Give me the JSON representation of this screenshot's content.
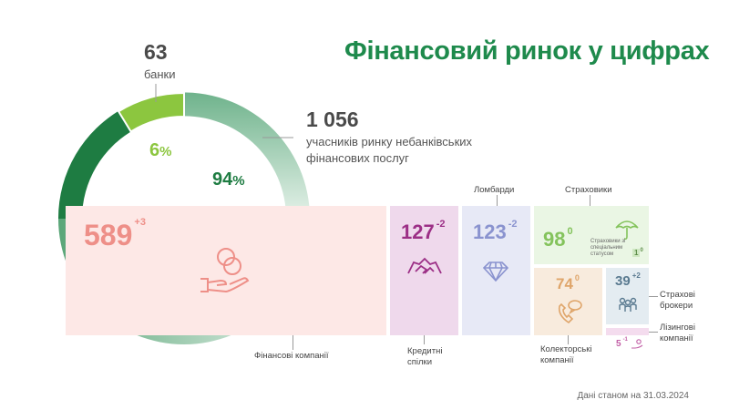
{
  "title": "Фінансовий ринок у цифрах",
  "footer": "Дані станом на 31.03.2024",
  "banks": {
    "count": "63",
    "label": "банки",
    "percent": "6",
    "pct_sign": "%"
  },
  "nonbank": {
    "count": "1 056",
    "label": "учасників ринку небанківських фінансових послуг",
    "percent": "94",
    "pct_sign": "%"
  },
  "tiles": {
    "finance": {
      "value": "589",
      "change": "+3",
      "label": "Фінансові компанії",
      "icon": "coins-hand-icon"
    },
    "credit": {
      "value": "127",
      "change": "-2",
      "label": "Кредитні спілки",
      "icon": "handshake-icon"
    },
    "pawnshops": {
      "value": "123",
      "change": "-2",
      "label": "Ломбарди",
      "icon": "diamond-icon"
    },
    "insurers": {
      "value": "98",
      "change": "0",
      "label": "Страховики",
      "icon": "umbrella-icon",
      "special_label": "Страховики зі спеціальним статусом",
      "special_value": "1",
      "special_change": "0"
    },
    "collectors": {
      "value": "74",
      "change": "0",
      "label": "Колекторські компанії",
      "icon": "phone-chat-icon"
    },
    "brokers": {
      "value": "39",
      "change": "+2",
      "label": "Страхові брокери",
      "icon": "people-icon"
    },
    "leasing": {
      "value": "5",
      "change": "-1",
      "label": "Лізингові компанії",
      "icon": "hand-coin-icon"
    }
  },
  "colors": {
    "title": "#1e8a4c",
    "bank_segment": "#8cc63f",
    "donut_dark": "#1e7c42",
    "finance_bg": "#fde8e6",
    "finance_text": "#ee8f88",
    "credit_bg": "#efd9ec",
    "credit_text": "#9c2f86",
    "pawn_bg": "#e7e9f6",
    "pawn_text": "#8a93cf",
    "insur_bg": "#eaf6e4",
    "insur_text": "#84c35c",
    "collect_bg": "#f8ebdd",
    "collect_text": "#dfa56a",
    "broker_bg": "#e4ecf1",
    "broker_text": "#5a7a90",
    "leasing_bg": "#f4dcee",
    "leasing_text": "#c25fa6"
  },
  "chart_data": {
    "type": "pie",
    "title": "Фінансовий ринок у цифрах",
    "categories": [
      "банки",
      "учасників ринку небанківських фінансових послуг"
    ],
    "values": [
      63,
      1056
    ],
    "percentages": [
      6,
      94
    ],
    "breakdown": {
      "categories": [
        "Фінансові компанії",
        "Кредитні спілки",
        "Ломбарди",
        "Страховики",
        "Страховики зі спеціальним статусом",
        "Колекторські компанії",
        "Страхові брокери",
        "Лізингові компанії"
      ],
      "values": [
        589,
        127,
        123,
        98,
        1,
        74,
        39,
        5
      ],
      "changes": [
        "+3",
        "-2",
        "-2",
        "0",
        "0",
        "0",
        "+2",
        "-1"
      ]
    }
  }
}
